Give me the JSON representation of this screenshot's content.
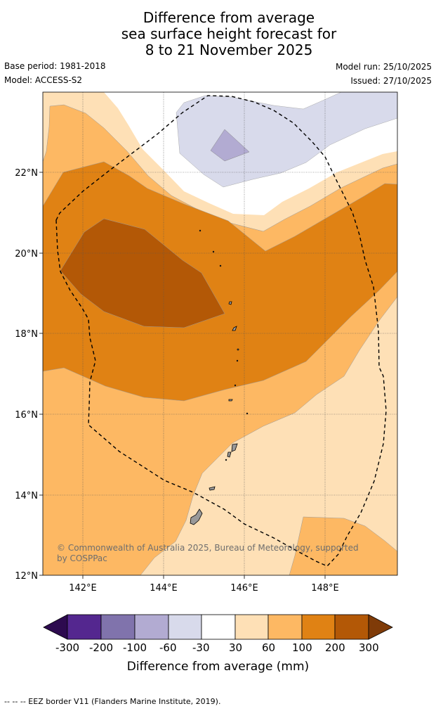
{
  "title": {
    "line1": "Difference from average",
    "line2": "sea surface height forecast for",
    "line3": "8 to 21 November 2025"
  },
  "meta": {
    "base_period": "Base period: 1981-2018",
    "model": "Model: ACCESS-S2",
    "model_run": "Model run: 25/10/2025",
    "issued": "Issued: 27/10/2025"
  },
  "map": {
    "lat_labels": [
      "22°N",
      "20°N",
      "18°N",
      "16°N",
      "14°N",
      "12°N"
    ],
    "lon_labels": [
      "142°E",
      "144°E",
      "146°E",
      "148°E"
    ],
    "copyright": "© Commonwealth of Australia 2025, Bureau of Meteorology, supported by COSPPac"
  },
  "colorbar": {
    "labels": [
      "-300",
      "-200",
      "-100",
      "-60",
      "-30",
      "30",
      "60",
      "100",
      "200",
      "300"
    ],
    "title": "Difference from average (mm)",
    "colors": {
      "lt_-300": "#2d0a4f",
      "-300_-200": "#54278f",
      "-200_-100": "#8073ac",
      "-100_-60": "#b2abd2",
      "-60_-30": "#d8daeb",
      "-30_30": "#ffffff",
      "30_60": "#fee0b6",
      "60_100": "#fdb863",
      "100_200": "#e08214",
      "200_300": "#b35806",
      "gt_300": "#7f3b08"
    }
  },
  "footer": {
    "legend": "--  --  -- EEZ border V11 (Flanders Marine Institute, 2019)."
  }
}
